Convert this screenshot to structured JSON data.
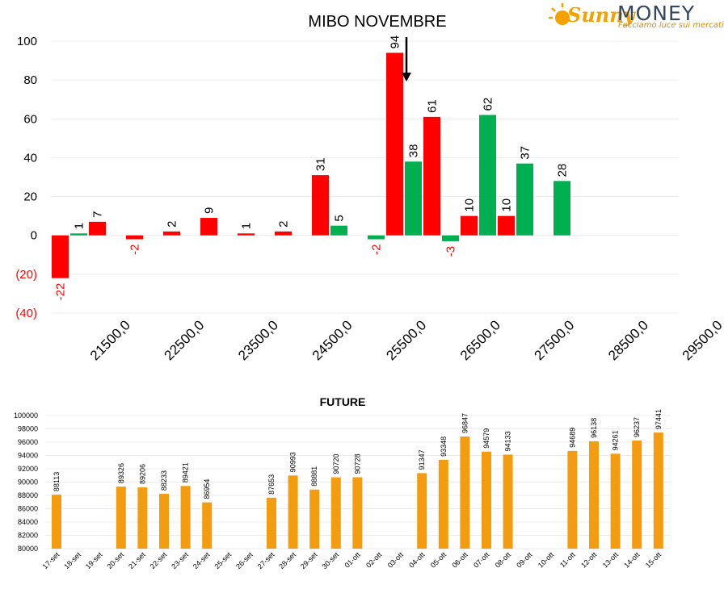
{
  "logo": {
    "brand_part1": "Sunny",
    "brand_part2": "MONEY",
    "tagline": "Facciamo luce sui mercati"
  },
  "colors": {
    "call": "#ff0000",
    "put": "#00b050",
    "future": "#f39c0f",
    "negative_label": "#ff0000"
  },
  "chart_data": [
    {
      "type": "bar",
      "title": "MIBO NOVEMBRE",
      "ylim": [
        -40,
        100
      ],
      "yticks": [
        "(40)",
        "(20)",
        "0",
        "20",
        "40",
        "60",
        "80",
        "100"
      ],
      "ytick_values": [
        -40,
        -20,
        0,
        20,
        40,
        60,
        80,
        100
      ],
      "categories": [
        "21500,0",
        "22500,0",
        "23500,0",
        "24500,0",
        "25500,0",
        "26500,0",
        "27500,0",
        "28500,0",
        "29500,0"
      ],
      "grid": true,
      "legend": "none",
      "bars": [
        {
          "slot": 0,
          "series": "red",
          "value": -22
        },
        {
          "slot": 1,
          "series": "green",
          "value": 1
        },
        {
          "slot": 2,
          "series": "red",
          "value": 7
        },
        {
          "slot": 4,
          "series": "red",
          "value": -2
        },
        {
          "slot": 6,
          "series": "red",
          "value": 2
        },
        {
          "slot": 8,
          "series": "red",
          "value": 9
        },
        {
          "slot": 10,
          "series": "red",
          "value": 1
        },
        {
          "slot": 12,
          "series": "red",
          "value": 2
        },
        {
          "slot": 14,
          "series": "red",
          "value": 31
        },
        {
          "slot": 15,
          "series": "green",
          "value": 5
        },
        {
          "slot": 17,
          "series": "green",
          "value": -2
        },
        {
          "slot": 18,
          "series": "red",
          "value": 94
        },
        {
          "slot": 19,
          "series": "green",
          "value": 38
        },
        {
          "slot": 20,
          "series": "red",
          "value": 61
        },
        {
          "slot": 21,
          "series": "green",
          "value": -3
        },
        {
          "slot": 22,
          "series": "red",
          "value": 10
        },
        {
          "slot": 23,
          "series": "green",
          "value": 62
        },
        {
          "slot": 24,
          "series": "red",
          "value": 10
        },
        {
          "slot": 25,
          "series": "green",
          "value": 37
        },
        {
          "slot": 27,
          "series": "green",
          "value": 28
        }
      ],
      "annotation": {
        "type": "arrow",
        "points_to_value": 94
      }
    },
    {
      "type": "bar",
      "title": "FUTURE",
      "ylim": [
        80000,
        100000
      ],
      "yticks": [
        "80000",
        "82000",
        "84000",
        "86000",
        "88000",
        "90000",
        "92000",
        "94000",
        "96000",
        "98000",
        "100000"
      ],
      "ytick_values": [
        80000,
        82000,
        84000,
        86000,
        88000,
        90000,
        92000,
        94000,
        96000,
        98000,
        100000
      ],
      "categories": [
        "17-set",
        "18-set",
        "19-set",
        "20-set",
        "21-set",
        "22-set",
        "23-set",
        "24-set",
        "25-set",
        "26-set",
        "27-set",
        "28-set",
        "29-set",
        "30-set",
        "01-ott",
        "02-ott",
        "03-ott",
        "04-ott",
        "05-ott",
        "06-ott",
        "07-ott",
        "08-ott",
        "09-ott",
        "10-ott",
        "11-ott",
        "12-ott",
        "13-ott",
        "14-ott",
        "15-ott"
      ],
      "values": [
        88113,
        null,
        null,
        89326,
        89206,
        88233,
        89421,
        86954,
        null,
        null,
        87653,
        90993,
        88881,
        90720,
        90728,
        null,
        null,
        91347,
        93348,
        96847,
        94579,
        94133,
        null,
        null,
        94689,
        96138,
        94261,
        96237,
        97441
      ],
      "value_labels": [
        "88113",
        "",
        "",
        "89326",
        "89206",
        "88233",
        "89421",
        "86954",
        "",
        "",
        "87653",
        "90993",
        "88881",
        "90720",
        "90728",
        "",
        "",
        "91347",
        "93348",
        "96847",
        "94579",
        "94133",
        "",
        "",
        "94689",
        "96138",
        "94261",
        "96237",
        "97441"
      ],
      "grid": true,
      "legend": "none"
    }
  ]
}
